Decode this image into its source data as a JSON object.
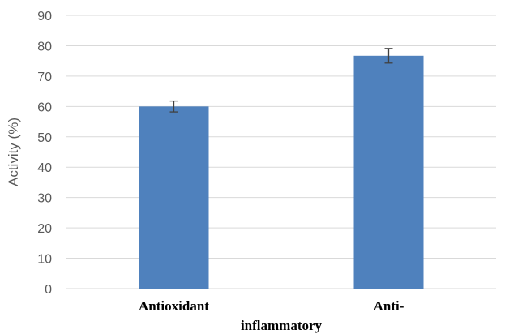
{
  "chart_data": {
    "type": "bar",
    "categories": [
      "Antioxidant",
      "Anti-inflammatory"
    ],
    "category_label_lines": [
      [
        "Antioxidant"
      ],
      [
        "Anti-",
        "inflammatory"
      ]
    ],
    "values": [
      60,
      76.7
    ],
    "error": [
      1.8,
      2.4
    ],
    "title": "",
    "xlabel": "",
    "ylabel": "Activity (%)",
    "ylim": [
      0,
      90
    ],
    "yticks": [
      0,
      10,
      20,
      30,
      40,
      50,
      60,
      70,
      80,
      90
    ],
    "grid": true,
    "legend": "none",
    "bar_color": "#4F81BD",
    "grid_color": "#D9D9D9",
    "error_color": "#404040"
  }
}
